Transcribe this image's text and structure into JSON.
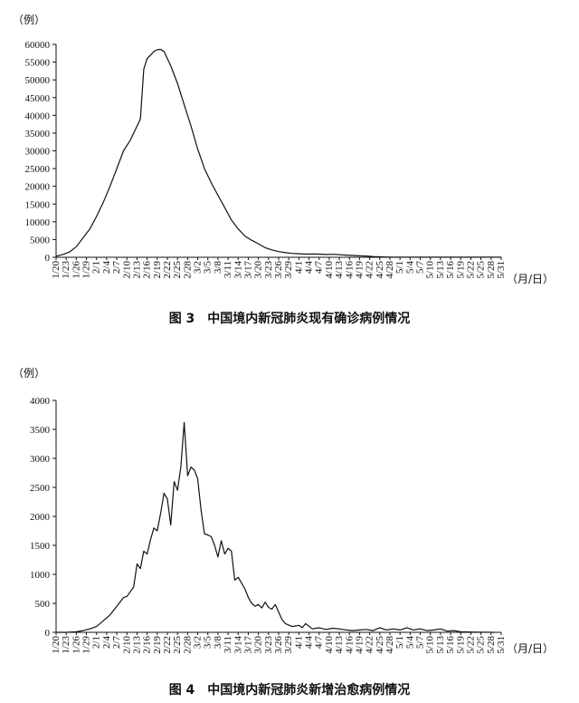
{
  "chart_data": [
    {
      "type": "line",
      "title": "图 3　中国境内新冠肺炎现有确诊病例情况",
      "ylabel": "（例）",
      "xlabel": "（月/日）",
      "ylim": [
        0,
        60000
      ],
      "y_ticks": [
        "0",
        "5000",
        "10000",
        "15000",
        "20000",
        "25000",
        "30000",
        "35000",
        "40000",
        "45000",
        "50000",
        "55000",
        "60000"
      ],
      "x_ticks": [
        "1/20",
        "1/23",
        "1/26",
        "1/29",
        "2/1",
        "2/4",
        "2/7",
        "2/10",
        "2/13",
        "2/16",
        "2/19",
        "2/22",
        "2/25",
        "2/28",
        "3/2",
        "3/5",
        "3/8",
        "3/11",
        "3/14",
        "3/17",
        "3/20",
        "3/23",
        "3/26",
        "3/29",
        "4/1",
        "4/4",
        "4/7",
        "4/10",
        "4/13",
        "4/16",
        "4/19",
        "4/22",
        "4/25",
        "4/28",
        "5/1",
        "5/4",
        "5/7",
        "5/10",
        "5/13",
        "5/16",
        "5/19",
        "5/22",
        "5/25",
        "5/28",
        "5/31"
      ],
      "series": [
        {
          "values": [
            [
              0,
              300
            ],
            [
              2,
              800
            ],
            [
              4,
              1500
            ],
            [
              6,
              3000
            ],
            [
              8,
              5500
            ],
            [
              10,
              8000
            ],
            [
              12,
              11500
            ],
            [
              14,
              15500
            ],
            [
              16,
              20000
            ],
            [
              18,
              25000
            ],
            [
              20,
              30000
            ],
            [
              22,
              33000
            ],
            [
              24,
              37000
            ],
            [
              25,
              39000
            ],
            [
              26,
              53000
            ],
            [
              27,
              56000
            ],
            [
              28,
              57000
            ],
            [
              29,
              58000
            ],
            [
              30,
              58500
            ],
            [
              31,
              58600
            ],
            [
              32,
              58000
            ],
            [
              33,
              56000
            ],
            [
              34,
              54000
            ],
            [
              36,
              49000
            ],
            [
              38,
              43000
            ],
            [
              40,
              37000
            ],
            [
              42,
              30500
            ],
            [
              44,
              25000
            ],
            [
              46,
              21000
            ],
            [
              48,
              17500
            ],
            [
              50,
              14000
            ],
            [
              52,
              10500
            ],
            [
              54,
              8000
            ],
            [
              56,
              6000
            ],
            [
              58,
              4800
            ],
            [
              60,
              3800
            ],
            [
              62,
              2700
            ],
            [
              64,
              2100
            ],
            [
              66,
              1600
            ],
            [
              68,
              1300
            ],
            [
              70,
              1100
            ],
            [
              72,
              1000
            ],
            [
              74,
              900
            ],
            [
              76,
              950
            ],
            [
              78,
              900
            ],
            [
              80,
              800
            ],
            [
              82,
              850
            ],
            [
              84,
              750
            ],
            [
              86,
              600
            ],
            [
              88,
              500
            ],
            [
              90,
              400
            ],
            [
              92,
              350
            ],
            [
              94,
              200
            ],
            [
              96,
              120
            ],
            [
              98,
              80
            ],
            [
              100,
              60
            ],
            [
              104,
              50
            ],
            [
              112,
              40
            ],
            [
              120,
              30
            ],
            [
              130,
              25
            ],
            [
              132,
              20
            ]
          ]
        }
      ]
    },
    {
      "type": "line",
      "title": "图 4　中国境内新冠肺炎新增治愈病例情况",
      "ylabel": "（例）",
      "xlabel": "（月/日）",
      "ylim": [
        0,
        4000
      ],
      "y_ticks": [
        "0",
        "500",
        "1000",
        "1500",
        "2000",
        "2500",
        "3000",
        "3500",
        "4000"
      ],
      "x_ticks": [
        "1/20",
        "1/23",
        "1/26",
        "1/29",
        "2/1",
        "2/4",
        "2/7",
        "2/10",
        "2/13",
        "2/16",
        "2/19",
        "2/22",
        "2/25",
        "2/28",
        "3/2",
        "3/5",
        "3/8",
        "3/11",
        "3/14",
        "3/17",
        "3/20",
        "3/23",
        "3/26",
        "3/29",
        "4/1",
        "4/4",
        "4/7",
        "4/10",
        "4/13",
        "4/16",
        "4/19",
        "4/22",
        "4/25",
        "4/28",
        "5/1",
        "5/4",
        "5/7",
        "5/10",
        "5/13",
        "5/16",
        "5/19",
        "5/22",
        "5/25",
        "5/28",
        "5/31"
      ],
      "series": [
        {
          "values": [
            [
              0,
              0
            ],
            [
              3,
              0
            ],
            [
              6,
              10
            ],
            [
              8,
              30
            ],
            [
              10,
              60
            ],
            [
              12,
              100
            ],
            [
              13,
              150
            ],
            [
              14,
              200
            ],
            [
              16,
              300
            ],
            [
              18,
              450
            ],
            [
              20,
              600
            ],
            [
              21,
              620
            ],
            [
              22,
              700
            ],
            [
              23,
              780
            ],
            [
              24,
              1180
            ],
            [
              25,
              1100
            ],
            [
              26,
              1400
            ],
            [
              27,
              1350
            ],
            [
              28,
              1600
            ],
            [
              29,
              1800
            ],
            [
              30,
              1750
            ],
            [
              31,
              2050
            ],
            [
              32,
              2400
            ],
            [
              33,
              2300
            ],
            [
              34,
              1850
            ],
            [
              35,
              2600
            ],
            [
              36,
              2450
            ],
            [
              37,
              2850
            ],
            [
              38,
              3620
            ],
            [
              39,
              2700
            ],
            [
              40,
              2850
            ],
            [
              41,
              2800
            ],
            [
              42,
              2650
            ],
            [
              43,
              2100
            ],
            [
              44,
              1700
            ],
            [
              45,
              1680
            ],
            [
              46,
              1650
            ],
            [
              47,
              1500
            ],
            [
              48,
              1300
            ],
            [
              49,
              1580
            ],
            [
              50,
              1350
            ],
            [
              51,
              1450
            ],
            [
              52,
              1400
            ],
            [
              53,
              900
            ],
            [
              54,
              950
            ],
            [
              55,
              850
            ],
            [
              56,
              750
            ],
            [
              57,
              600
            ],
            [
              58,
              500
            ],
            [
              59,
              450
            ],
            [
              60,
              480
            ],
            [
              61,
              420
            ],
            [
              62,
              520
            ],
            [
              63,
              430
            ],
            [
              64,
              400
            ],
            [
              65,
              480
            ],
            [
              66,
              350
            ],
            [
              67,
              220
            ],
            [
              68,
              150
            ],
            [
              70,
              100
            ],
            [
              72,
              120
            ],
            [
              73,
              80
            ],
            [
              74,
              150
            ],
            [
              76,
              60
            ],
            [
              78,
              80
            ],
            [
              80,
              50
            ],
            [
              82,
              70
            ],
            [
              84,
              60
            ],
            [
              86,
              40
            ],
            [
              88,
              30
            ],
            [
              90,
              40
            ],
            [
              92,
              50
            ],
            [
              94,
              30
            ],
            [
              96,
              80
            ],
            [
              98,
              40
            ],
            [
              100,
              60
            ],
            [
              102,
              40
            ],
            [
              104,
              80
            ],
            [
              106,
              40
            ],
            [
              108,
              60
            ],
            [
              110,
              30
            ],
            [
              112,
              40
            ],
            [
              114,
              60
            ],
            [
              116,
              20
            ],
            [
              118,
              30
            ],
            [
              120,
              10
            ],
            [
              124,
              5
            ],
            [
              130,
              0
            ]
          ]
        }
      ]
    }
  ]
}
